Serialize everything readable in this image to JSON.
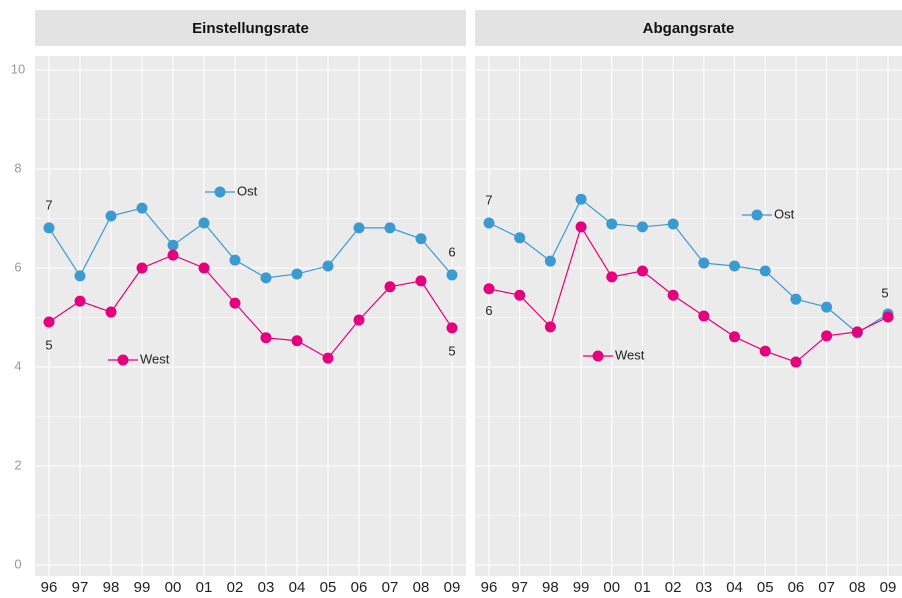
{
  "chart_data": [
    {
      "type": "line",
      "title": "Einstellungsrate",
      "categories": [
        "96",
        "97",
        "98",
        "99",
        "00",
        "01",
        "02",
        "03",
        "04",
        "05",
        "06",
        "07",
        "08",
        "09"
      ],
      "series": [
        {
          "name": "Ost",
          "color": "#3b9bd1",
          "values": [
            6.81,
            5.84,
            7.05,
            7.21,
            6.46,
            6.91,
            6.16,
            5.8,
            5.88,
            6.04,
            6.81,
            6.81,
            6.59,
            5.86
          ]
        },
        {
          "name": "West",
          "color": "#e5007d",
          "values": [
            4.91,
            5.33,
            5.11,
            6.0,
            6.26,
            6.0,
            5.29,
            4.59,
            4.53,
            4.18,
            4.95,
            5.62,
            5.74,
            4.79
          ]
        }
      ],
      "annotations": [
        "7",
        "5",
        "6",
        "5"
      ],
      "ylim": [
        0,
        10
      ],
      "yticks": [
        0,
        2,
        4,
        6,
        8,
        10
      ],
      "grid": true
    },
    {
      "type": "line",
      "title": "Abgangsrate",
      "categories": [
        "96",
        "97",
        "98",
        "99",
        "00",
        "01",
        "02",
        "03",
        "04",
        "05",
        "06",
        "07",
        "08",
        "09"
      ],
      "series": [
        {
          "name": "Ost",
          "color": "#3b9bd1",
          "values": [
            6.91,
            6.61,
            6.14,
            7.39,
            6.89,
            6.83,
            6.89,
            6.1,
            6.04,
            5.94,
            5.37,
            5.21,
            4.69,
            5.07
          ]
        },
        {
          "name": "West",
          "color": "#e5007d",
          "values": [
            5.58,
            5.45,
            4.81,
            6.83,
            5.82,
            5.94,
            5.45,
            5.03,
            4.61,
            4.32,
            4.1,
            4.63,
            4.71,
            5.01
          ]
        }
      ],
      "annotations": [
        "7",
        "6",
        "5"
      ],
      "ylim": [
        0,
        10
      ],
      "yticks": [
        0,
        2,
        4,
        6,
        8,
        10
      ],
      "grid": true
    }
  ]
}
